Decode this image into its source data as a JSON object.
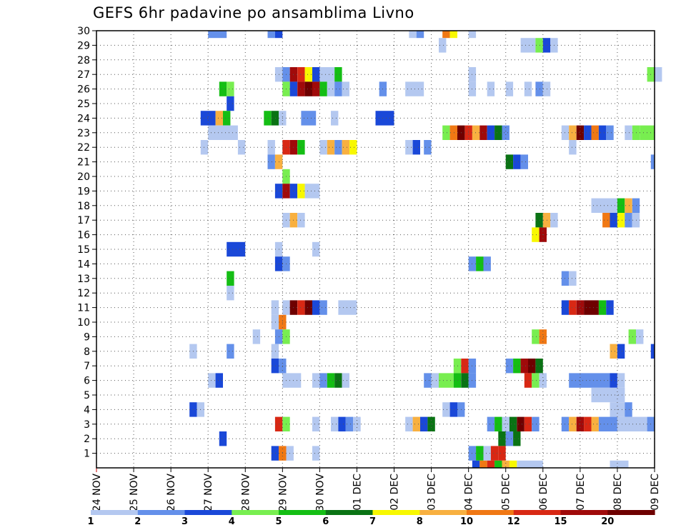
{
  "chart_data": {
    "type": "heatmap",
    "title": "GEFS 6hr padavine po ansamblima Livno",
    "x_ticks": [
      "24 NOV",
      "25 NOV",
      "26 NOV",
      "27 NOV",
      "28 NOV",
      "29 NOV",
      "30 NOV",
      "01 DEC",
      "02 DEC",
      "03 DEC",
      "04 DEC",
      "05 DEC",
      "06 DEC",
      "07 DEC",
      "08 DEC",
      "09 DEC"
    ],
    "y_ticks": [
      1,
      2,
      3,
      4,
      5,
      6,
      7,
      8,
      9,
      10,
      11,
      12,
      13,
      14,
      15,
      16,
      17,
      18,
      19,
      20,
      21,
      22,
      23,
      24,
      25,
      26,
      27,
      28,
      29,
      30
    ],
    "x_range": [
      0,
      15
    ],
    "y_range": [
      0,
      30
    ],
    "grid": true,
    "colorbar": {
      "labels": [
        "1",
        "2",
        "3",
        "4",
        "5",
        "6",
        "7",
        "8",
        "10",
        "12",
        "15",
        "20"
      ],
      "colors": [
        "#b4c8f0",
        "#6490ea",
        "#1a48d8",
        "#78ee50",
        "#14be14",
        "#0a7314",
        "#f8f800",
        "#f8b040",
        "#f07814",
        "#d82814",
        "#a00a0a",
        "#6e0000"
      ]
    },
    "cells": [
      [
        30,
        3.0,
        3.5,
        1
      ],
      [
        30,
        4.6,
        4.8,
        1
      ],
      [
        30,
        4.8,
        5.0,
        2
      ],
      [
        30,
        8.4,
        8.6,
        0
      ],
      [
        30,
        8.6,
        8.8,
        1
      ],
      [
        30,
        9.3,
        9.5,
        8
      ],
      [
        30,
        9.5,
        9.7,
        6
      ],
      [
        30,
        10.0,
        10.2,
        0
      ],
      [
        29,
        9.2,
        9.4,
        0
      ],
      [
        29,
        11.4,
        11.8,
        0
      ],
      [
        29,
        11.8,
        12.0,
        3
      ],
      [
        29,
        12.0,
        12.2,
        2
      ],
      [
        29,
        12.2,
        12.4,
        0
      ],
      [
        27,
        4.8,
        5.0,
        0
      ],
      [
        27,
        5.0,
        5.2,
        1
      ],
      [
        27,
        5.2,
        5.4,
        10
      ],
      [
        27,
        5.4,
        5.6,
        9
      ],
      [
        27,
        5.6,
        5.8,
        6
      ],
      [
        27,
        5.8,
        6.0,
        2
      ],
      [
        27,
        6.0,
        6.4,
        0
      ],
      [
        27,
        6.4,
        6.6,
        4
      ],
      [
        27,
        10.0,
        10.2,
        0
      ],
      [
        27,
        14.8,
        15.0,
        3
      ],
      [
        27,
        15.0,
        15.2,
        0
      ],
      [
        26,
        3.3,
        3.5,
        4
      ],
      [
        26,
        3.5,
        3.7,
        3
      ],
      [
        26,
        5.0,
        5.2,
        3
      ],
      [
        26,
        5.2,
        5.4,
        2
      ],
      [
        26,
        5.4,
        5.6,
        10
      ],
      [
        26,
        5.6,
        5.8,
        11
      ],
      [
        26,
        5.8,
        6.0,
        10
      ],
      [
        26,
        6.0,
        6.2,
        4
      ],
      [
        26,
        6.2,
        6.4,
        0
      ],
      [
        26,
        6.4,
        6.6,
        1
      ],
      [
        26,
        6.6,
        6.8,
        0
      ],
      [
        26,
        7.6,
        7.8,
        1
      ],
      [
        26,
        8.3,
        8.8,
        0
      ],
      [
        26,
        10.0,
        10.2,
        0
      ],
      [
        26,
        10.5,
        10.7,
        0
      ],
      [
        26,
        11.0,
        11.2,
        0
      ],
      [
        26,
        11.5,
        11.7,
        0
      ],
      [
        26,
        11.8,
        12.0,
        1
      ],
      [
        26,
        12.0,
        12.2,
        0
      ],
      [
        25,
        3.5,
        3.7,
        2
      ],
      [
        24,
        2.8,
        3.2,
        2
      ],
      [
        24,
        3.2,
        3.4,
        7
      ],
      [
        24,
        3.4,
        3.6,
        4
      ],
      [
        24,
        4.5,
        4.7,
        4
      ],
      [
        24,
        4.7,
        4.9,
        5
      ],
      [
        24,
        4.9,
        5.1,
        0
      ],
      [
        24,
        5.5,
        5.9,
        1
      ],
      [
        24,
        6.3,
        6.5,
        0
      ],
      [
        24,
        7.5,
        8.0,
        2
      ],
      [
        23,
        3.0,
        3.8,
        0
      ],
      [
        23,
        9.3,
        9.5,
        3
      ],
      [
        23,
        9.5,
        9.7,
        8
      ],
      [
        23,
        9.7,
        9.9,
        11
      ],
      [
        23,
        9.9,
        10.1,
        9
      ],
      [
        23,
        10.1,
        10.3,
        7
      ],
      [
        23,
        10.3,
        10.5,
        10
      ],
      [
        23,
        10.5,
        10.7,
        2
      ],
      [
        23,
        10.7,
        10.9,
        5
      ],
      [
        23,
        10.9,
        11.1,
        1
      ],
      [
        23,
        12.5,
        12.7,
        0
      ],
      [
        23,
        12.7,
        12.9,
        7
      ],
      [
        23,
        12.9,
        13.1,
        11
      ],
      [
        23,
        13.1,
        13.3,
        2
      ],
      [
        23,
        13.3,
        13.5,
        8
      ],
      [
        23,
        13.5,
        13.7,
        2
      ],
      [
        23,
        13.7,
        13.9,
        1
      ],
      [
        23,
        14.2,
        14.4,
        0
      ],
      [
        23,
        14.4,
        14.6,
        3
      ],
      [
        23,
        14.6,
        15.0,
        3
      ],
      [
        22,
        2.8,
        3.0,
        0
      ],
      [
        22,
        3.8,
        4.0,
        0
      ],
      [
        22,
        4.6,
        4.8,
        0
      ],
      [
        22,
        5.0,
        5.2,
        9
      ],
      [
        22,
        5.2,
        5.4,
        10
      ],
      [
        22,
        5.4,
        5.6,
        4
      ],
      [
        22,
        6.0,
        6.2,
        0
      ],
      [
        22,
        6.2,
        6.4,
        7
      ],
      [
        22,
        6.4,
        6.6,
        1
      ],
      [
        22,
        6.6,
        6.8,
        7
      ],
      [
        22,
        6.8,
        7.0,
        6
      ],
      [
        22,
        8.3,
        8.5,
        0
      ],
      [
        22,
        8.5,
        8.7,
        2
      ],
      [
        22,
        8.8,
        9.0,
        1
      ],
      [
        22,
        12.7,
        12.9,
        0
      ],
      [
        21,
        4.6,
        4.8,
        1
      ],
      [
        21,
        4.8,
        5.0,
        7
      ],
      [
        21,
        11.0,
        11.2,
        5
      ],
      [
        21,
        11.2,
        11.4,
        2
      ],
      [
        21,
        11.4,
        11.6,
        1
      ],
      [
        21,
        14.9,
        15.0,
        1
      ],
      [
        20,
        5.0,
        5.2,
        3
      ],
      [
        19,
        4.8,
        5.0,
        2
      ],
      [
        19,
        5.0,
        5.2,
        10
      ],
      [
        19,
        5.2,
        5.4,
        2
      ],
      [
        19,
        5.4,
        5.6,
        6
      ],
      [
        19,
        5.6,
        6.0,
        0
      ],
      [
        18,
        13.3,
        14.0,
        0
      ],
      [
        18,
        14.0,
        14.2,
        4
      ],
      [
        18,
        14.2,
        14.4,
        7
      ],
      [
        18,
        14.4,
        14.6,
        1
      ],
      [
        17,
        5.0,
        5.2,
        0
      ],
      [
        17,
        5.2,
        5.4,
        7
      ],
      [
        17,
        5.4,
        5.6,
        0
      ],
      [
        17,
        11.8,
        12.0,
        5
      ],
      [
        17,
        12.0,
        12.2,
        7
      ],
      [
        17,
        12.2,
        12.4,
        0
      ],
      [
        17,
        13.6,
        13.8,
        8
      ],
      [
        17,
        13.8,
        14.0,
        2
      ],
      [
        17,
        14.0,
        14.2,
        6
      ],
      [
        17,
        14.2,
        14.4,
        1
      ],
      [
        17,
        14.4,
        14.6,
        0
      ],
      [
        16,
        11.7,
        11.9,
        6
      ],
      [
        16,
        11.9,
        12.1,
        10
      ],
      [
        15,
        3.5,
        4.0,
        2
      ],
      [
        15,
        4.8,
        5.0,
        0
      ],
      [
        15,
        5.8,
        6.0,
        0
      ],
      [
        14,
        4.8,
        5.0,
        2
      ],
      [
        14,
        5.0,
        5.2,
        1
      ],
      [
        14,
        10.0,
        10.2,
        1
      ],
      [
        14,
        10.2,
        10.4,
        4
      ],
      [
        14,
        10.4,
        10.6,
        1
      ],
      [
        13,
        3.5,
        3.7,
        4
      ],
      [
        13,
        12.5,
        12.7,
        1
      ],
      [
        13,
        12.7,
        12.9,
        0
      ],
      [
        12,
        3.5,
        3.7,
        0
      ],
      [
        11,
        4.7,
        4.9,
        0
      ],
      [
        11,
        5.0,
        5.2,
        0
      ],
      [
        11,
        5.2,
        5.4,
        11
      ],
      [
        11,
        5.4,
        5.6,
        9
      ],
      [
        11,
        5.6,
        5.8,
        11
      ],
      [
        11,
        5.8,
        6.0,
        2
      ],
      [
        11,
        6.0,
        6.2,
        1
      ],
      [
        11,
        6.5,
        7.0,
        0
      ],
      [
        11,
        12.5,
        12.7,
        2
      ],
      [
        11,
        12.7,
        12.9,
        9
      ],
      [
        11,
        12.9,
        13.1,
        10
      ],
      [
        11,
        13.1,
        13.5,
        11
      ],
      [
        11,
        13.5,
        13.7,
        4
      ],
      [
        11,
        13.7,
        13.9,
        2
      ],
      [
        10,
        4.7,
        4.9,
        0
      ],
      [
        10,
        4.9,
        5.1,
        8
      ],
      [
        9,
        4.2,
        4.4,
        0
      ],
      [
        9,
        4.8,
        5.0,
        1
      ],
      [
        9,
        5.0,
        5.2,
        3
      ],
      [
        9,
        11.7,
        11.9,
        3
      ],
      [
        9,
        11.9,
        12.1,
        8
      ],
      [
        9,
        14.3,
        14.5,
        3
      ],
      [
        9,
        14.5,
        14.7,
        0
      ],
      [
        8,
        2.5,
        2.7,
        0
      ],
      [
        8,
        3.5,
        3.7,
        1
      ],
      [
        8,
        4.7,
        4.9,
        0
      ],
      [
        8,
        13.8,
        14.0,
        7
      ],
      [
        8,
        14.0,
        14.2,
        2
      ],
      [
        8,
        14.9,
        15.0,
        2
      ],
      [
        7,
        4.7,
        4.9,
        2
      ],
      [
        7,
        4.9,
        5.1,
        1
      ],
      [
        7,
        9.6,
        9.8,
        3
      ],
      [
        7,
        9.8,
        10.0,
        9
      ],
      [
        7,
        10.0,
        10.2,
        1
      ],
      [
        7,
        11.0,
        11.2,
        1
      ],
      [
        7,
        11.2,
        11.4,
        4
      ],
      [
        7,
        11.4,
        11.6,
        10
      ],
      [
        7,
        11.6,
        11.8,
        11
      ],
      [
        7,
        11.8,
        12.0,
        5
      ],
      [
        6,
        3.0,
        3.2,
        0
      ],
      [
        6,
        3.2,
        3.4,
        2
      ],
      [
        6,
        5.0,
        5.5,
        0
      ],
      [
        6,
        5.8,
        6.0,
        0
      ],
      [
        6,
        6.0,
        6.2,
        1
      ],
      [
        6,
        6.2,
        6.4,
        4
      ],
      [
        6,
        6.4,
        6.6,
        5
      ],
      [
        6,
        6.6,
        6.8,
        0
      ],
      [
        6,
        8.8,
        9.0,
        1
      ],
      [
        6,
        9.0,
        9.2,
        0
      ],
      [
        6,
        9.2,
        9.6,
        3
      ],
      [
        6,
        9.6,
        9.8,
        4
      ],
      [
        6,
        9.8,
        10.0,
        5
      ],
      [
        6,
        10.0,
        10.2,
        1
      ],
      [
        6,
        11.5,
        11.7,
        9
      ],
      [
        6,
        11.7,
        11.9,
        3
      ],
      [
        6,
        11.9,
        12.1,
        0
      ],
      [
        6,
        12.7,
        13.8,
        1
      ],
      [
        6,
        13.8,
        14.0,
        2
      ],
      [
        6,
        14.0,
        14.2,
        0
      ],
      [
        5,
        13.3,
        14.2,
        0
      ],
      [
        4,
        2.5,
        2.7,
        2
      ],
      [
        4,
        2.7,
        2.9,
        0
      ],
      [
        4,
        9.3,
        9.5,
        0
      ],
      [
        4,
        9.5,
        9.7,
        2
      ],
      [
        4,
        9.7,
        9.9,
        1
      ],
      [
        4,
        13.8,
        14.2,
        0
      ],
      [
        4,
        14.2,
        14.4,
        1
      ],
      [
        3,
        4.8,
        5.0,
        9
      ],
      [
        3,
        5.0,
        5.2,
        3
      ],
      [
        3,
        5.8,
        6.0,
        0
      ],
      [
        3,
        6.3,
        6.5,
        0
      ],
      [
        3,
        6.5,
        6.7,
        2
      ],
      [
        3,
        6.7,
        6.9,
        1
      ],
      [
        3,
        6.9,
        7.1,
        0
      ],
      [
        3,
        8.3,
        8.5,
        0
      ],
      [
        3,
        8.5,
        8.7,
        7
      ],
      [
        3,
        8.7,
        8.9,
        2
      ],
      [
        3,
        8.9,
        9.1,
        5
      ],
      [
        3,
        10.5,
        10.7,
        1
      ],
      [
        3,
        10.7,
        10.9,
        4
      ],
      [
        3,
        10.9,
        11.1,
        0
      ],
      [
        3,
        11.1,
        11.3,
        5
      ],
      [
        3,
        11.3,
        11.5,
        11
      ],
      [
        3,
        11.5,
        11.7,
        9
      ],
      [
        3,
        11.7,
        11.9,
        1
      ],
      [
        3,
        12.5,
        12.7,
        1
      ],
      [
        3,
        12.7,
        12.9,
        7
      ],
      [
        3,
        12.9,
        13.1,
        10
      ],
      [
        3,
        13.1,
        13.3,
        9
      ],
      [
        3,
        13.3,
        13.5,
        7
      ],
      [
        3,
        13.5,
        14.0,
        1
      ],
      [
        3,
        14.0,
        14.8,
        0
      ],
      [
        3,
        14.8,
        15.0,
        1
      ],
      [
        2,
        3.3,
        3.5,
        2
      ],
      [
        2,
        10.8,
        11.0,
        5
      ],
      [
        2,
        11.0,
        11.2,
        1
      ],
      [
        2,
        11.2,
        11.4,
        5
      ],
      [
        1,
        4.7,
        4.9,
        2
      ],
      [
        1,
        4.9,
        5.1,
        8
      ],
      [
        1,
        5.1,
        5.3,
        0
      ],
      [
        1,
        5.8,
        6.0,
        0
      ],
      [
        1,
        10.0,
        10.2,
        1
      ],
      [
        1,
        10.2,
        10.4,
        4
      ],
      [
        1,
        10.4,
        10.6,
        0
      ],
      [
        1,
        10.6,
        10.8,
        9
      ],
      [
        1,
        10.8,
        11.0,
        9
      ],
      [
        0,
        10.1,
        10.3,
        2
      ],
      [
        0,
        10.3,
        10.5,
        8
      ],
      [
        0,
        10.5,
        10.7,
        9
      ],
      [
        0,
        10.7,
        10.9,
        4
      ],
      [
        0,
        10.9,
        11.1,
        7
      ],
      [
        0,
        11.1,
        11.3,
        6
      ],
      [
        0,
        11.3,
        12.0,
        0
      ],
      [
        0,
        13.8,
        14.3,
        0
      ]
    ]
  }
}
